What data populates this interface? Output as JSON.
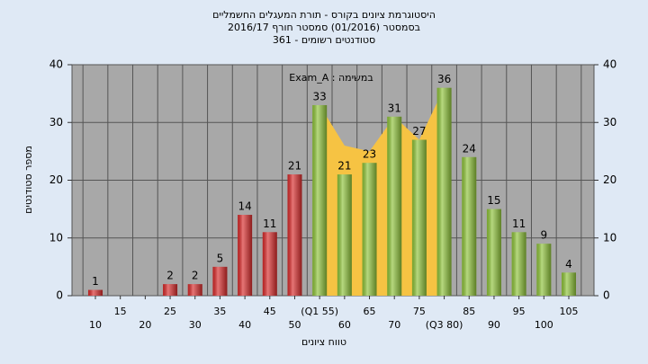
{
  "chart_data": {
    "type": "bar",
    "title": "היסטוגרמת ציונים בקורס - תורת המעגלים החשמליים",
    "subtitle": "בסמסטר  (01/2016)  סמסטר חורף 2016/17",
    "subtitle2": "361 - סטודנטים רשומים",
    "annotation": "Exam_A : במשימה",
    "x_label": "טווח ציונים",
    "y_label": "מספר סטודנטים",
    "categories": [
      "10",
      "15",
      "20",
      "25",
      "30",
      "35",
      "40",
      "45",
      "50",
      "(Q1 55)",
      "60",
      "65",
      "70",
      "75",
      "(Q3 80)",
      "85",
      "90",
      "95",
      "100",
      "105"
    ],
    "values": [
      1,
      null,
      null,
      2,
      2,
      5,
      14,
      11,
      21,
      33,
      21,
      23,
      31,
      27,
      36,
      24,
      15,
      11,
      9,
      4
    ],
    "colors": [
      "#d92b2b",
      null,
      null,
      "#d92b2b",
      "#d92b2b",
      "#d92b2b",
      "#d92b2b",
      "#d92b2b",
      "#d92b2b",
      "#8fc43a",
      "#8fc43a",
      "#8fc43a",
      "#8fc43a",
      "#8fc43a",
      "#8fc43a",
      "#8fc43a",
      "#8fc43a",
      "#8fc43a",
      "#8fc43a",
      "#8fc43a"
    ],
    "area": {
      "color": "#f6c343",
      "values": [
        null,
        null,
        null,
        null,
        null,
        null,
        null,
        null,
        null,
        33,
        26,
        25,
        31,
        27,
        36,
        null,
        null,
        null,
        null,
        null
      ]
    },
    "ylim": [
      0,
      40
    ],
    "yticks": [
      0,
      10,
      20,
      30,
      40
    ],
    "y2lim": [
      0,
      40
    ],
    "y2ticks": [
      0,
      10,
      20,
      30,
      40
    ],
    "grid": true
  }
}
